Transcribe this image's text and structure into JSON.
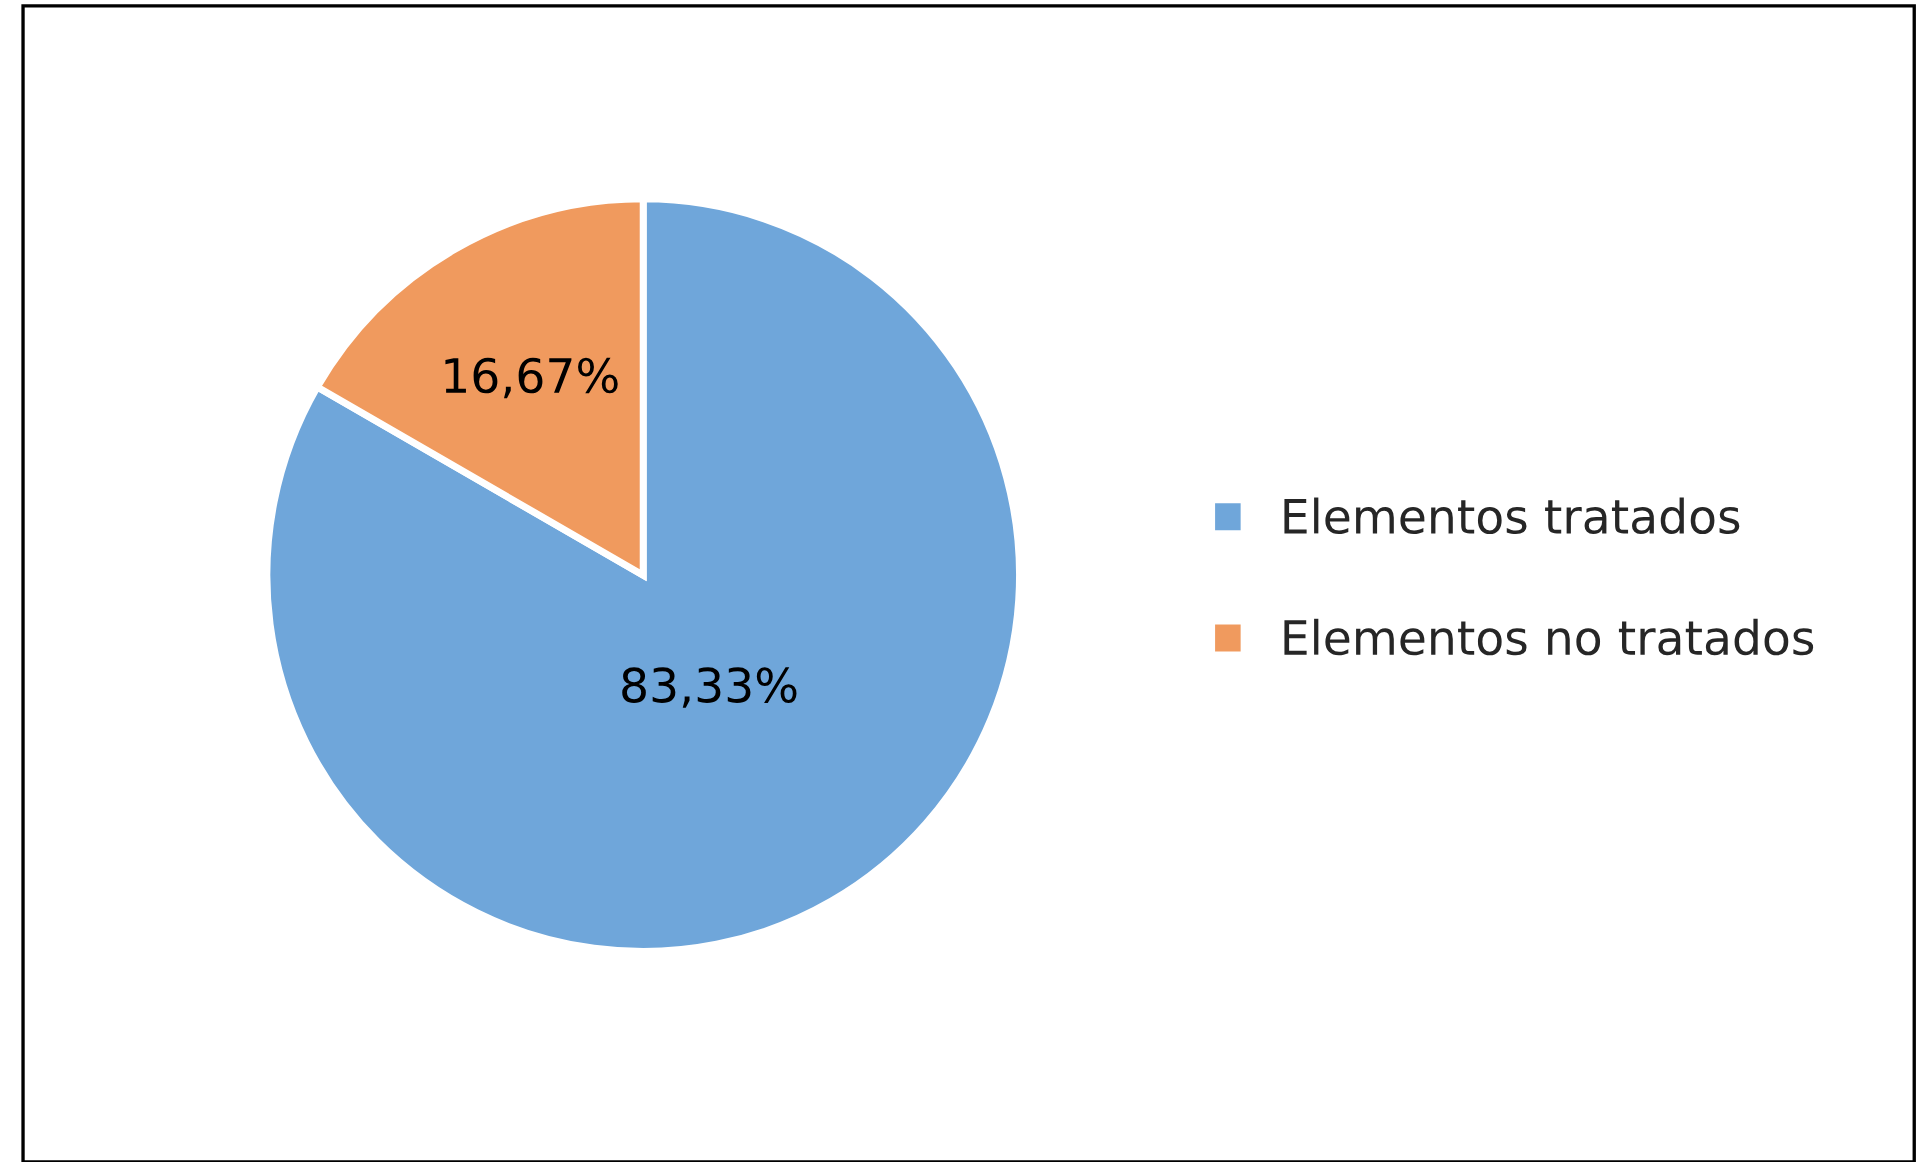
{
  "chart_data": {
    "type": "pie",
    "categories": [
      "Elementos tratados",
      "Elementos no tratados"
    ],
    "values": [
      83.33,
      16.67
    ],
    "value_labels": [
      "83,33%",
      "16,67%"
    ],
    "colors": [
      "#6fa6da",
      "#f09a5e"
    ],
    "legend": "right"
  }
}
